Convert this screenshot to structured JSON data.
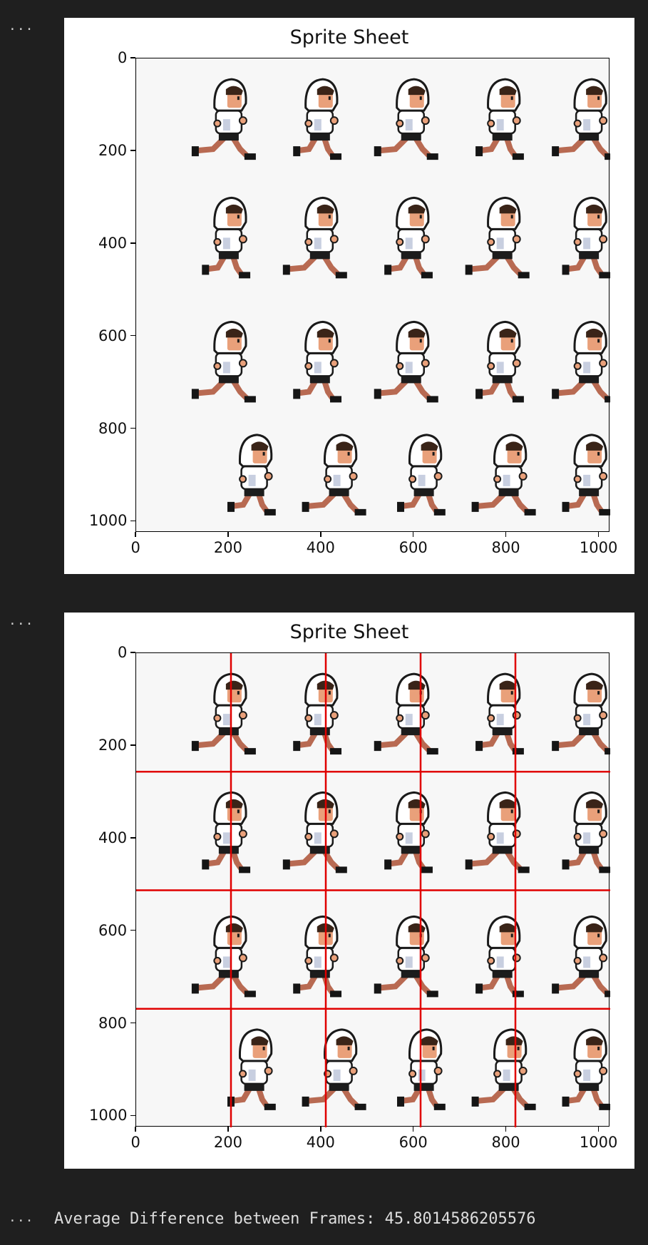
{
  "cells": [
    {
      "prompt_marker": "...",
      "figure": {
        "title": "Sprite Sheet",
        "x_ticks": [
          "0",
          "200",
          "400",
          "600",
          "800",
          "1000"
        ],
        "y_ticks": [
          "0",
          "200",
          "400",
          "600",
          "800",
          "1000"
        ],
        "show_grid_lines": false
      }
    },
    {
      "prompt_marker": "...",
      "figure": {
        "title": "Sprite Sheet",
        "x_ticks": [
          "0",
          "200",
          "400",
          "600",
          "800",
          "1000"
        ],
        "y_ticks": [
          "0",
          "200",
          "400",
          "600",
          "800",
          "1000"
        ],
        "show_grid_lines": true,
        "grid_line_color": "#e00000",
        "vertical_lines_x": [
          204.8,
          409.6,
          614.4,
          819.2
        ],
        "horizontal_lines_y": [
          256,
          512,
          768
        ]
      }
    },
    {
      "prompt_marker": "...",
      "text": "Average Difference between Frames: 45.8014586205576"
    }
  ],
  "sprite_sheet": {
    "rows": 4,
    "columns": 5,
    "frame_count": 20,
    "colors": {
      "hoodie": "#ffffff",
      "hoodie_shade": "#c8cfe0",
      "outline": "#1a1a1a",
      "hair": "#3a2418",
      "skin": "#e9a07a",
      "shorts": "#1c1c1c",
      "legs": "#b86a52",
      "shoes": "#151515",
      "background": "#f7f7f7"
    }
  }
}
